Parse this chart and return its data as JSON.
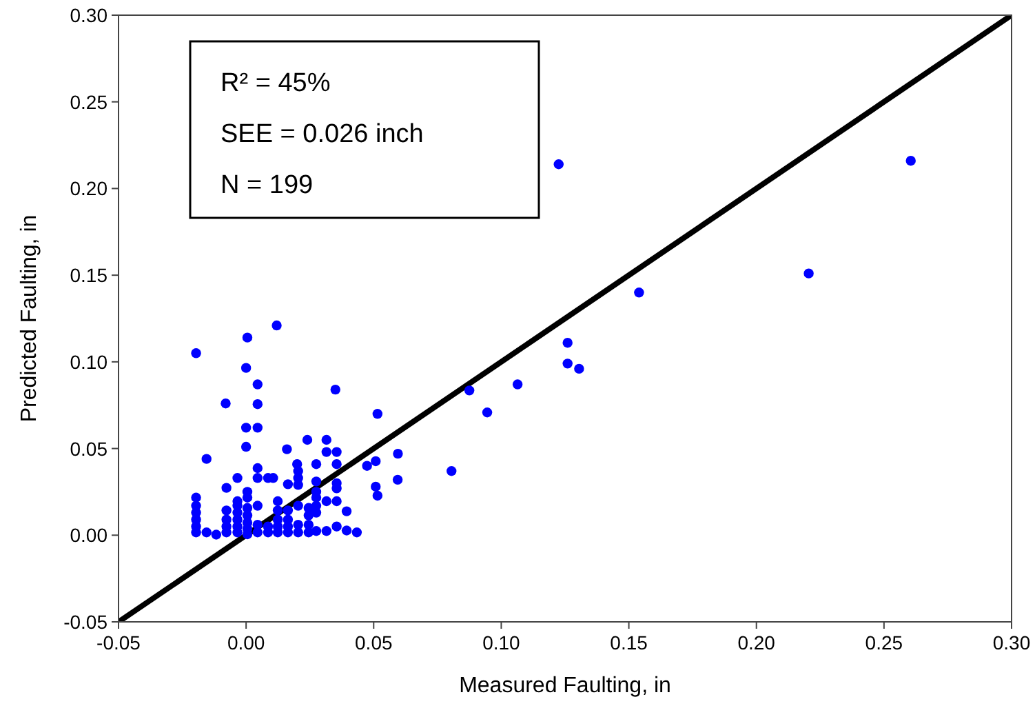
{
  "chart_data": {
    "type": "scatter",
    "xlabel": "Measured Faulting, in",
    "ylabel": "Predicted Faulting, in",
    "xlim": [
      -0.05,
      0.3
    ],
    "ylim": [
      -0.05,
      0.3
    ],
    "xticks": [
      {
        "value": -0.05,
        "label": "-0.05"
      },
      {
        "value": 0,
        "label": "0.00"
      },
      {
        "value": 0.05,
        "label": "0.05"
      },
      {
        "value": 0.1,
        "label": "0.10"
      },
      {
        "value": 0.15,
        "label": "0.15"
      },
      {
        "value": 0.2,
        "label": "0.20"
      },
      {
        "value": 0.25,
        "label": "0.25"
      },
      {
        "value": 0.3,
        "label": "0.30"
      }
    ],
    "yticks": [
      {
        "value": -0.05,
        "label": "-0.05"
      },
      {
        "value": 0,
        "label": "0.00"
      },
      {
        "value": 0.05,
        "label": "0.05"
      },
      {
        "value": 0.1,
        "label": "0.10"
      },
      {
        "value": 0.15,
        "label": "0.15"
      },
      {
        "value": 0.2,
        "label": "0.20"
      },
      {
        "value": 0.25,
        "label": "0.25"
      },
      {
        "value": 0.3,
        "label": "0.30"
      }
    ],
    "grid": false,
    "marker": "circle",
    "annotations": [
      "R² = 45%",
      "SEE = 0.026 inch",
      "N = 199"
    ],
    "series": [
      {
        "color": "#0000ff",
        "x": [
          -0.0196,
          0.0005,
          0.012,
          0,
          0.0045,
          -0.008,
          0.0045,
          0.035,
          0.0515,
          0,
          0.0045,
          0.024,
          0.0315,
          0,
          0.016,
          0.0315,
          0.0355,
          -0.0155,
          0.0595,
          0.0045,
          0.02,
          0.0275,
          0.0355,
          0.0474,
          0.0508,
          -0.0034,
          0.0045,
          0.0086,
          0.0106,
          0.0204,
          0.0204,
          0.0204,
          0.0275,
          0.0355,
          0.0355,
          0.0164,
          0.0594,
          0.0508,
          0.0515,
          -0.0077,
          0.0005,
          0.0005,
          0.0275,
          0.0275,
          -0.0196,
          -0.0196,
          -0.0196,
          -0.0196,
          -0.0196,
          -0.0196,
          -0.0077,
          -0.0077,
          -0.0077,
          -0.0077,
          -0.0034,
          -0.0034,
          -0.0034,
          -0.0034,
          -0.0034,
          -0.0034,
          0.0005,
          0.0005,
          0.0005,
          0.0005,
          0.0005,
          0.0045,
          0.0045,
          0.0045,
          0.0086,
          0.0086,
          0.0124,
          0.0124,
          0.0124,
          0.0124,
          0.0124,
          0.0164,
          0.0164,
          0.0164,
          0.0164,
          0.0204,
          0.0204,
          0.0204,
          0.0245,
          0.0245,
          0.0245,
          0.0245,
          0.0275,
          0.0275,
          0.0275,
          0.0315,
          0.0315,
          0.0355,
          0.0355,
          0.0394,
          0.0394,
          0.0434,
          -0.0155,
          -0.0117,
          0.1225,
          0.2605,
          0.2205,
          0.154,
          0.126,
          0.126,
          0.1305,
          0.1064,
          0.0875,
          0.0945,
          0.0805
        ],
        "values": [
          0.105,
          0.114,
          0.121,
          0.0965,
          0.087,
          0.076,
          0.0756,
          0.084,
          0.07,
          0.062,
          0.062,
          0.055,
          0.055,
          0.051,
          0.0496,
          0.048,
          0.048,
          0.044,
          0.047,
          0.0387,
          0.041,
          0.041,
          0.041,
          0.04,
          0.0427,
          0.033,
          0.033,
          0.033,
          0.033,
          0.037,
          0.033,
          0.029,
          0.031,
          0.03,
          0.027,
          0.0294,
          0.032,
          0.028,
          0.0228,
          0.0273,
          0.025,
          0.0217,
          0.025,
          0.0217,
          0.0217,
          0.017,
          0.013,
          0.009,
          0.005,
          0.0016,
          0.0143,
          0.009,
          0.005,
          0.0016,
          0.0196,
          0.017,
          0.013,
          0.009,
          0.005,
          0.0016,
          0.0157,
          0.0114,
          0.0072,
          0.0037,
          0.0005,
          0.017,
          0.006,
          0.0016,
          0.005,
          0.0016,
          0.0196,
          0.0143,
          0.009,
          0.005,
          0.0016,
          0.0143,
          0.009,
          0.005,
          0.0016,
          0.017,
          0.006,
          0.0016,
          0.0157,
          0.0114,
          0.006,
          0.0016,
          0.017,
          0.013,
          0.0024,
          0.0196,
          0.0024,
          0.0196,
          0.005,
          0.0138,
          0.0027,
          0.0016,
          0.0016,
          0.0003,
          0.214,
          0.216,
          0.151,
          0.14,
          0.111,
          0.099,
          0.096,
          0.087,
          0.0835,
          0.0708,
          0.037
        ]
      },
      {
        "type": "line",
        "marker": "none",
        "color": "#000000",
        "x": [
          -0.05,
          0.3
        ],
        "values": [
          -0.05,
          0.3
        ]
      }
    ]
  }
}
